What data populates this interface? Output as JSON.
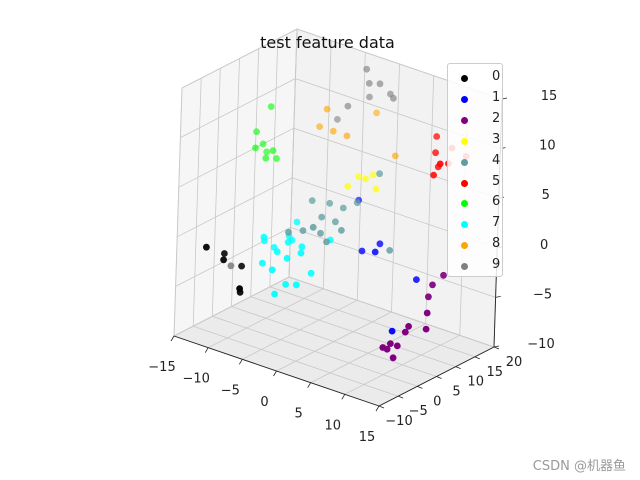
{
  "chart_data": {
    "type": "scatter",
    "title": "test feature data",
    "xlabel": "",
    "ylabel": "",
    "zlabel": "",
    "xlim": [
      -15,
      15
    ],
    "ylim": [
      -10,
      20
    ],
    "zlim": [
      -10,
      15
    ],
    "x_ticks": [
      "−15",
      "−10",
      "−5",
      "0",
      "5",
      "10",
      "15"
    ],
    "y_ticks": [
      "−10",
      "−5",
      "0",
      "5",
      "10",
      "15",
      "20"
    ],
    "z_ticks": [
      "−10",
      "−5",
      "0",
      "5",
      "10",
      "15"
    ],
    "legend_position": "top-right",
    "series": [
      {
        "name": "0",
        "color": "#000000",
        "points": [
          [
            -14,
            -4,
            -2
          ],
          [
            -12,
            -3,
            -3
          ],
          [
            -10,
            -2,
            -6
          ],
          [
            -13,
            -1,
            -3
          ],
          [
            -9,
            -4,
            -5
          ],
          [
            -11,
            0,
            -4
          ]
        ]
      },
      {
        "name": "1",
        "color": "#0000ff",
        "points": [
          [
            2,
            8,
            -1
          ],
          [
            4,
            9,
            0
          ],
          [
            10,
            2,
            -6
          ],
          [
            -2,
            14,
            2
          ],
          [
            10,
            8,
            -2
          ],
          [
            5,
            6,
            0
          ]
        ]
      },
      {
        "name": "2",
        "color": "#800080",
        "points": [
          [
            14,
            4,
            -2
          ],
          [
            15,
            2,
            -3
          ],
          [
            13,
            -2,
            -6
          ],
          [
            12,
            -4,
            -6
          ],
          [
            11,
            -1,
            -7
          ],
          [
            15,
            6,
            0
          ],
          [
            13,
            0,
            -5
          ],
          [
            14,
            -1,
            -4
          ],
          [
            14,
            5,
            -1
          ],
          [
            12,
            -2,
            -6
          ],
          [
            13,
            -3,
            -7
          ],
          [
            16,
            0,
            -4
          ]
        ]
      },
      {
        "name": "3",
        "color": "#ffff00",
        "points": [
          [
            -1,
            12,
            5
          ],
          [
            0,
            14,
            5
          ],
          [
            1,
            13,
            4
          ],
          [
            -2,
            11,
            4
          ],
          [
            0,
            12,
            5
          ]
        ]
      },
      {
        "name": "4",
        "color": "#5f9ea0",
        "points": [
          [
            -6,
            9,
            2
          ],
          [
            -4,
            8,
            1
          ],
          [
            -2,
            8,
            1
          ],
          [
            -3,
            6,
            0
          ],
          [
            -5,
            5,
            0
          ],
          [
            -2,
            10,
            2
          ],
          [
            0,
            10,
            3
          ],
          [
            2,
            12,
            6
          ],
          [
            -6,
            3,
            0
          ],
          [
            -3,
            4,
            1
          ],
          [
            6,
            8,
            0
          ],
          [
            -4,
            10,
            2
          ],
          [
            -1,
            4,
            0
          ],
          [
            0,
            6,
            1
          ]
        ]
      },
      {
        "name": "5",
        "color": "#ff0000",
        "points": [
          [
            9,
            14,
            11
          ],
          [
            10,
            12,
            10
          ],
          [
            13,
            10,
            10
          ],
          [
            14,
            9,
            12
          ],
          [
            12,
            8,
            9
          ],
          [
            11,
            11,
            9
          ],
          [
            15,
            11,
            11
          ],
          [
            14,
            6,
            11
          ]
        ]
      },
      {
        "name": "6",
        "color": "#00ff00",
        "points": [
          [
            -15,
            12,
            5
          ],
          [
            -14,
            11,
            4
          ],
          [
            -16,
            12,
            6
          ],
          [
            -15,
            10,
            5
          ],
          [
            -13,
            11,
            5
          ],
          [
            -15,
            13,
            4
          ],
          [
            -14,
            12,
            9
          ],
          [
            -13,
            12,
            4
          ]
        ]
      },
      {
        "name": "7",
        "color": "#00ffff",
        "points": [
          [
            -8,
            0,
            -3
          ],
          [
            -7,
            2,
            -2
          ],
          [
            -6,
            -1,
            -3
          ],
          [
            -5,
            1,
            -2
          ],
          [
            -4,
            3,
            -1
          ],
          [
            -3,
            1,
            -1
          ],
          [
            -9,
            2,
            -1
          ],
          [
            -7,
            5,
            -1
          ],
          [
            -6,
            3,
            -1
          ],
          [
            -8,
            3,
            -2
          ],
          [
            -5,
            -2,
            -5
          ],
          [
            -2,
            2,
            -3
          ],
          [
            -1,
            5,
            0
          ],
          [
            -3,
            0,
            -4
          ],
          [
            -6,
            4,
            -1
          ],
          [
            -10,
            4,
            -2
          ],
          [
            -7,
            7,
            0
          ],
          [
            -4,
            -1,
            -4
          ]
        ]
      },
      {
        "name": "8",
        "color": "#ffa500",
        "points": [
          [
            -7,
            14,
            10
          ],
          [
            -6,
            14,
            8
          ],
          [
            -8,
            14,
            8
          ],
          [
            -4,
            14,
            8
          ],
          [
            -2,
            18,
            10
          ],
          [
            2,
            16,
            7
          ]
        ]
      },
      {
        "name": "9",
        "color": "#808080",
        "points": [
          [
            -2,
            15,
            15
          ],
          [
            -1,
            14,
            14
          ],
          [
            0,
            15,
            14
          ],
          [
            1,
            16,
            13
          ],
          [
            2,
            15,
            13
          ],
          [
            -4,
            14,
            11
          ],
          [
            -6,
            15,
            9
          ],
          [
            -2,
            16,
            12
          ],
          [
            -12,
            -1,
            -4
          ]
        ]
      }
    ]
  },
  "watermark": "CSDN @机器鱼"
}
